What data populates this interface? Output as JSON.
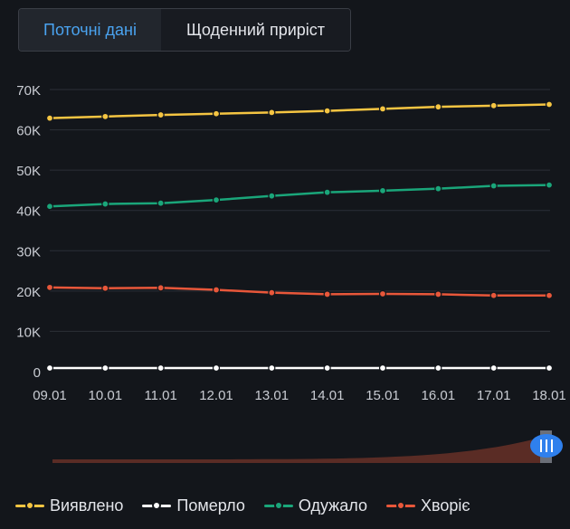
{
  "tabs": [
    {
      "label": "Поточні дані",
      "active": true
    },
    {
      "label": "Щоденний приріст",
      "active": false
    }
  ],
  "colors": {
    "background": "#13161b",
    "grid": "#2b2f37",
    "axis_text": "#c9ccd3",
    "navigator_fill": "#5a2c25",
    "navigator_handle": "#2f80ed",
    "navigator_bar": "#6b6f78"
  },
  "chart_data": {
    "type": "line",
    "title": "",
    "xlabel": "",
    "ylabel": "",
    "categories": [
      "09.01",
      "10.01",
      "11.01",
      "12.01",
      "13.01",
      "14.01",
      "15.01",
      "16.01",
      "17.01",
      "18.01"
    ],
    "y_ticks": [
      {
        "value": 0,
        "label": "0"
      },
      {
        "value": 10000,
        "label": "10K"
      },
      {
        "value": 20000,
        "label": "20K"
      },
      {
        "value": 30000,
        "label": "30K"
      },
      {
        "value": 40000,
        "label": "40K"
      },
      {
        "value": 50000,
        "label": "50K"
      },
      {
        "value": 60000,
        "label": "60K"
      },
      {
        "value": 70000,
        "label": "70K"
      }
    ],
    "ylim": [
      0,
      70000
    ],
    "grid": true,
    "legend_position": "bottom-left",
    "series": [
      {
        "name": "Виявлено",
        "color": "#f5c542",
        "values": [
          62900,
          63300,
          63700,
          64000,
          64300,
          64700,
          65200,
          65700,
          66000,
          66300
        ]
      },
      {
        "name": "Померло",
        "color": "#ffffff",
        "values": [
          900,
          900,
          900,
          900,
          900,
          900,
          900,
          900,
          900,
          900
        ]
      },
      {
        "name": "Одужало",
        "color": "#1aa67a",
        "values": [
          41000,
          41600,
          41800,
          42600,
          43600,
          44500,
          44900,
          45400,
          46100,
          46300
        ]
      },
      {
        "name": "Хворіє",
        "color": "#e8573a",
        "values": [
          20900,
          20700,
          20800,
          20300,
          19600,
          19200,
          19300,
          19200,
          18900,
          18900
        ]
      }
    ]
  }
}
